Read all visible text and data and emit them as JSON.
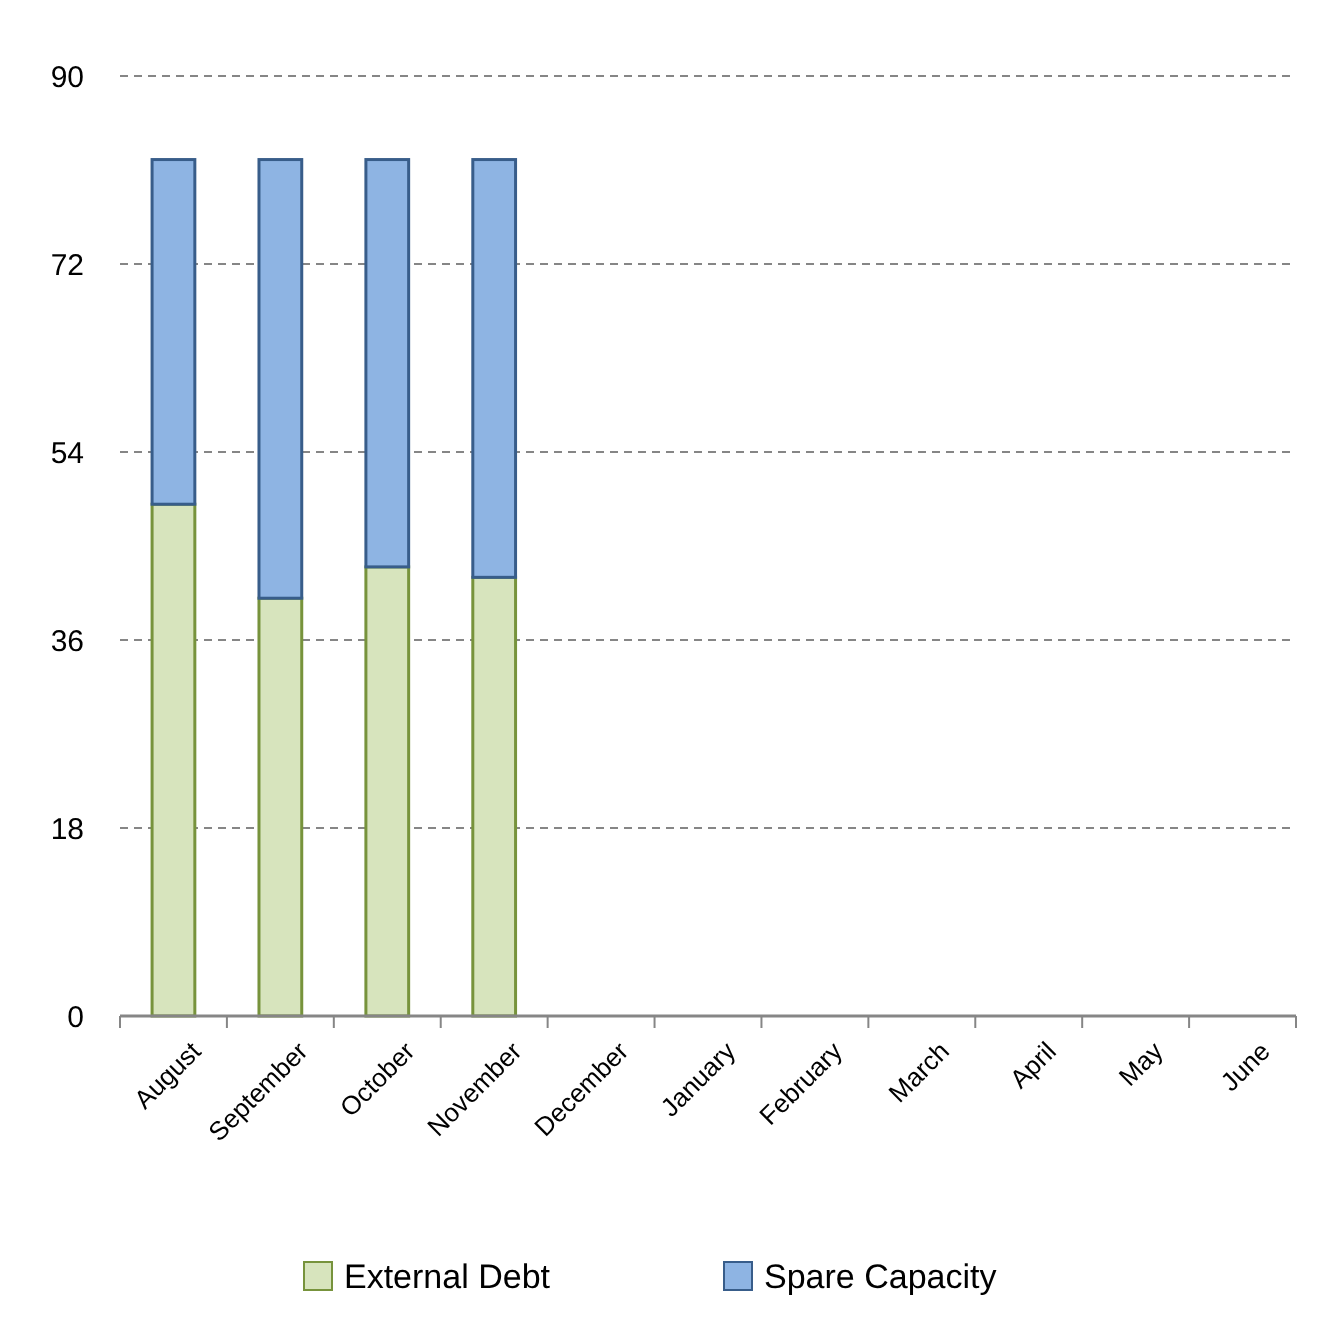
{
  "chart_data": {
    "type": "bar",
    "stacked": true,
    "categories": [
      "August",
      "September",
      "October",
      "November",
      "December",
      "January",
      "February",
      "March",
      "April",
      "May",
      "June"
    ],
    "series": [
      {
        "name": "External Debt",
        "color": "#d7e4bd",
        "values": [
          49,
          40,
          43,
          42,
          null,
          null,
          null,
          null,
          null,
          null,
          null
        ]
      },
      {
        "name": "Spare Capacity",
        "color": "#8eb4e3",
        "values": [
          33,
          42,
          39,
          40,
          null,
          null,
          null,
          null,
          null,
          null,
          null
        ]
      }
    ],
    "ylim": [
      0,
      90
    ],
    "yticks": [
      0,
      18,
      36,
      54,
      72,
      90
    ],
    "grid": "y",
    "legend": "bottom"
  }
}
